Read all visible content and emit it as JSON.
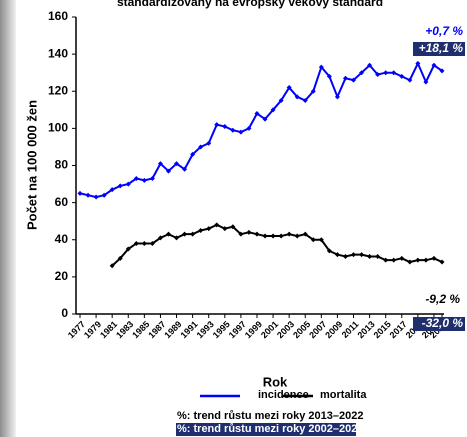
{
  "chart_data": {
    "type": "line",
    "title": "standardizovaný na evropský věkový standard",
    "ylabel": "Počet na 100 000 žen",
    "xlabel": "Rok",
    "x": [
      1977,
      1978,
      1979,
      1980,
      1981,
      1982,
      1983,
      1984,
      1985,
      1986,
      1987,
      1988,
      1989,
      1990,
      1991,
      1992,
      1993,
      1994,
      1995,
      1996,
      1997,
      1998,
      1999,
      2000,
      2001,
      2002,
      2003,
      2004,
      2005,
      2006,
      2007,
      2008,
      2009,
      2010,
      2011,
      2012,
      2013,
      2014,
      2015,
      2016,
      2017,
      2018,
      2019,
      2020,
      2021,
      2022
    ],
    "xlim": [
      1977,
      2022
    ],
    "xticks": [
      1977,
      1979,
      1981,
      1983,
      1985,
      1987,
      1989,
      1991,
      1993,
      1995,
      1997,
      1999,
      2001,
      2003,
      2005,
      2007,
      2009,
      2011,
      2013,
      2015,
      2017,
      2019,
      2021,
      2022
    ],
    "ylim": [
      0,
      160
    ],
    "yticks": [
      0,
      20,
      40,
      60,
      80,
      100,
      120,
      140,
      160
    ],
    "series": [
      {
        "name": "incidence",
        "color": "#0000ff",
        "values": [
          65,
          64,
          63,
          64,
          67,
          69,
          70,
          73,
          72,
          73,
          81,
          77,
          81,
          78,
          86,
          90,
          92,
          102,
          101,
          99,
          98,
          100,
          108,
          105,
          110,
          115,
          122,
          117,
          115,
          120,
          133,
          128,
          117,
          127,
          126,
          130,
          134,
          129,
          130,
          130,
          128,
          126,
          135,
          125,
          134,
          131
        ]
      },
      {
        "name": "mortalita",
        "color": "#000000",
        "values": [
          null,
          null,
          null,
          null,
          26,
          30,
          35,
          38,
          38,
          38,
          41,
          43,
          41,
          43,
          43,
          45,
          46,
          48,
          46,
          47,
          43,
          44,
          43,
          42,
          42,
          42,
          43,
          42,
          43,
          40,
          40,
          34,
          32,
          31,
          32,
          32,
          31,
          31,
          29,
          29,
          30,
          28,
          29,
          29,
          30,
          28
        ]
      }
    ],
    "annotations": [
      "+0,7 %",
      "+18,1 %",
      "-9,2 %",
      "-32,0 %"
    ],
    "notes": [
      "%: trend růstu mezi roky 2013–2022",
      "%: trend růstu mezi roky 2002–2022"
    ]
  }
}
